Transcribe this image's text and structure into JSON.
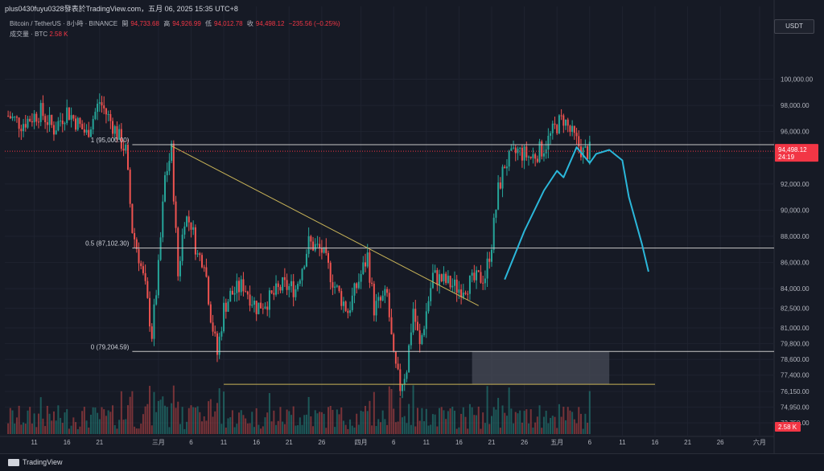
{
  "header": {
    "title": "plus0430fuyu0328發表於TradingView.com，五月 06, 2025 15:35 UTC+8"
  },
  "symbol_info": {
    "symbol": "Bitcoin / TetherUS · 8小時 · BINANCE",
    "open_label": "開",
    "open_value": "94,733.68",
    "high_label": "高",
    "high_value": "94,926.99",
    "low_label": "低",
    "low_value": "94,012.78",
    "close_label": "收",
    "close_value": "94,498.12",
    "change_value": "−235.56 (−0.25%)",
    "volume_label": "成交量 · BTC",
    "volume_value": "2.58 K"
  },
  "currency_button": "USDT",
  "price_tag": {
    "price": "94,498.12",
    "countdown": "24:19"
  },
  "volume_tag": "2.58 K",
  "footer": {
    "brand": "TradingView"
  },
  "colors": {
    "up": "#26a69a",
    "down": "#ef5350",
    "fib_line": "#c8c8c8",
    "trend_line": "#c9b458",
    "projection": "#2bb7da",
    "price_tag": "#f23645",
    "zone": "#4a4e5a"
  },
  "chart_data": {
    "type": "candlestick",
    "title": "",
    "ylim": [
      72900,
      103100
    ],
    "y_ticks": [
      {
        "value": 100000,
        "label": "100,000.00"
      },
      {
        "value": 98000,
        "label": "98,000.00"
      },
      {
        "value": 96000,
        "label": "96,000.00"
      },
      {
        "value": 94000,
        "label": "94,000.00"
      },
      {
        "value": 92000,
        "label": "92,000.00"
      },
      {
        "value": 90000,
        "label": "90,000.00"
      },
      {
        "value": 88000,
        "label": "88,000.00"
      },
      {
        "value": 86000,
        "label": "86,000.00"
      },
      {
        "value": 84000,
        "label": "84,000.00"
      },
      {
        "value": 82500,
        "label": "82,500.00"
      },
      {
        "value": 81000,
        "label": "81,000.00"
      },
      {
        "value": 79800,
        "label": "79,800.00"
      },
      {
        "value": 78600,
        "label": "78,600.00"
      },
      {
        "value": 77400,
        "label": "77,400.00"
      },
      {
        "value": 76150,
        "label": "76,150.00"
      },
      {
        "value": 74950,
        "label": "74,950.00"
      },
      {
        "value": 73750,
        "label": "73,750.00"
      }
    ],
    "x_ticks": [
      "11",
      "16",
      "21",
      "三月",
      "6",
      "11",
      "16",
      "21",
      "26",
      "四月",
      "6",
      "11",
      "16",
      "21",
      "26",
      "五月",
      "6",
      "11",
      "16",
      "21",
      "26",
      "六月"
    ],
    "fib_levels": [
      {
        "ratio": "1",
        "value": 95000.0,
        "label": "1 (95,000.00)"
      },
      {
        "ratio": "0.5",
        "value": 87102.3,
        "label": "0.5 (87,102.30)"
      },
      {
        "ratio": "0",
        "value": 79204.59,
        "label": "0 (79,204.59)"
      }
    ],
    "current_price": 94498.12,
    "trend_line": {
      "from_date": "Mar 3",
      "from_price": 94900,
      "to_date": "Apr 19",
      "to_price": 82700
    },
    "support_line": {
      "from_date": "Mar 11",
      "to_date": "May 16",
      "price": 76700
    },
    "target_zone": {
      "from_date": "Apr 18",
      "to_date": "May 9",
      "top": 79200,
      "bottom": 76700
    },
    "projection_path": [
      {
        "date": "Apr 23",
        "price": 84700
      },
      {
        "date": "Apr 26",
        "price": 88400
      },
      {
        "date": "Apr 29",
        "price": 91500
      },
      {
        "date": "May 1",
        "price": 93000
      },
      {
        "date": "May 2",
        "price": 92500
      },
      {
        "date": "May 4",
        "price": 94800
      },
      {
        "date": "May 6",
        "price": 93600
      },
      {
        "date": "May 7",
        "price": 94300
      },
      {
        "date": "May 9",
        "price": 94600
      },
      {
        "date": "May 11",
        "price": 93800
      },
      {
        "date": "May 12",
        "price": 91000
      },
      {
        "date": "May 14",
        "price": 87400
      },
      {
        "date": "May 15",
        "price": 85300
      }
    ],
    "price_path": [
      {
        "date": "Feb 6",
        "price": 97200
      },
      {
        "date": "Feb 8",
        "price": 96600
      },
      {
        "date": "Feb 11",
        "price": 97500
      },
      {
        "date": "Feb 13",
        "price": 96200
      },
      {
        "date": "Feb 15",
        "price": 97600
      },
      {
        "date": "Feb 18",
        "price": 95800
      },
      {
        "date": "Feb 20",
        "price": 98300
      },
      {
        "date": "Feb 22",
        "price": 96500
      },
      {
        "date": "Feb 24",
        "price": 94500
      },
      {
        "date": "Feb 25",
        "price": 88500
      },
      {
        "date": "Feb 26",
        "price": 86500
      },
      {
        "date": "Feb 27",
        "price": 84000
      },
      {
        "date": "Feb 28",
        "price": 80500
      },
      {
        "date": "Mar 1",
        "price": 85500
      },
      {
        "date": "Mar 2",
        "price": 92500
      },
      {
        "date": "Mar 3",
        "price": 94500
      },
      {
        "date": "Mar 4",
        "price": 85000
      },
      {
        "date": "Mar 5",
        "price": 89500
      },
      {
        "date": "Mar 6",
        "price": 89000
      },
      {
        "date": "Mar 7",
        "price": 86500
      },
      {
        "date": "Mar 8",
        "price": 86300
      },
      {
        "date": "Mar 9",
        "price": 82000
      },
      {
        "date": "Mar 10",
        "price": 79000
      },
      {
        "date": "Mar 11",
        "price": 82500
      },
      {
        "date": "Mar 12",
        "price": 83500
      },
      {
        "date": "Mar 14",
        "price": 84300
      },
      {
        "date": "Mar 16",
        "price": 82600
      },
      {
        "date": "Mar 18",
        "price": 83200
      },
      {
        "date": "Mar 20",
        "price": 84200
      },
      {
        "date": "Mar 22",
        "price": 84000
      },
      {
        "date": "Mar 24",
        "price": 87500
      },
      {
        "date": "Mar 26",
        "price": 86900
      },
      {
        "date": "Mar 28",
        "price": 84200
      },
      {
        "date": "Mar 30",
        "price": 82300
      },
      {
        "date": "Apr 1",
        "price": 85100
      },
      {
        "date": "Apr 2",
        "price": 86500
      },
      {
        "date": "Apr 3",
        "price": 82500
      },
      {
        "date": "Apr 5",
        "price": 83500
      },
      {
        "date": "Apr 6",
        "price": 78500
      },
      {
        "date": "Apr 7",
        "price": 76500
      },
      {
        "date": "Apr 8",
        "price": 78000
      },
      {
        "date": "Apr 9",
        "price": 82500
      },
      {
        "date": "Apr 10",
        "price": 79500
      },
      {
        "date": "Apr 12",
        "price": 85000
      },
      {
        "date": "Apr 14",
        "price": 84500
      },
      {
        "date": "Apr 16",
        "price": 84000
      },
      {
        "date": "Apr 18",
        "price": 84500
      },
      {
        "date": "Apr 20",
        "price": 85000
      },
      {
        "date": "Apr 21",
        "price": 87500
      },
      {
        "date": "Apr 22",
        "price": 91500
      },
      {
        "date": "Apr 23",
        "price": 93500
      },
      {
        "date": "Apr 25",
        "price": 94500
      },
      {
        "date": "Apr 27",
        "price": 94000
      },
      {
        "date": "Apr 29",
        "price": 94800
      },
      {
        "date": "May 1",
        "price": 96500
      },
      {
        "date": "May 2",
        "price": 97000
      },
      {
        "date": "May 3",
        "price": 96000
      },
      {
        "date": "May 5",
        "price": 94400
      },
      {
        "date": "May 6",
        "price": 94498
      }
    ]
  }
}
